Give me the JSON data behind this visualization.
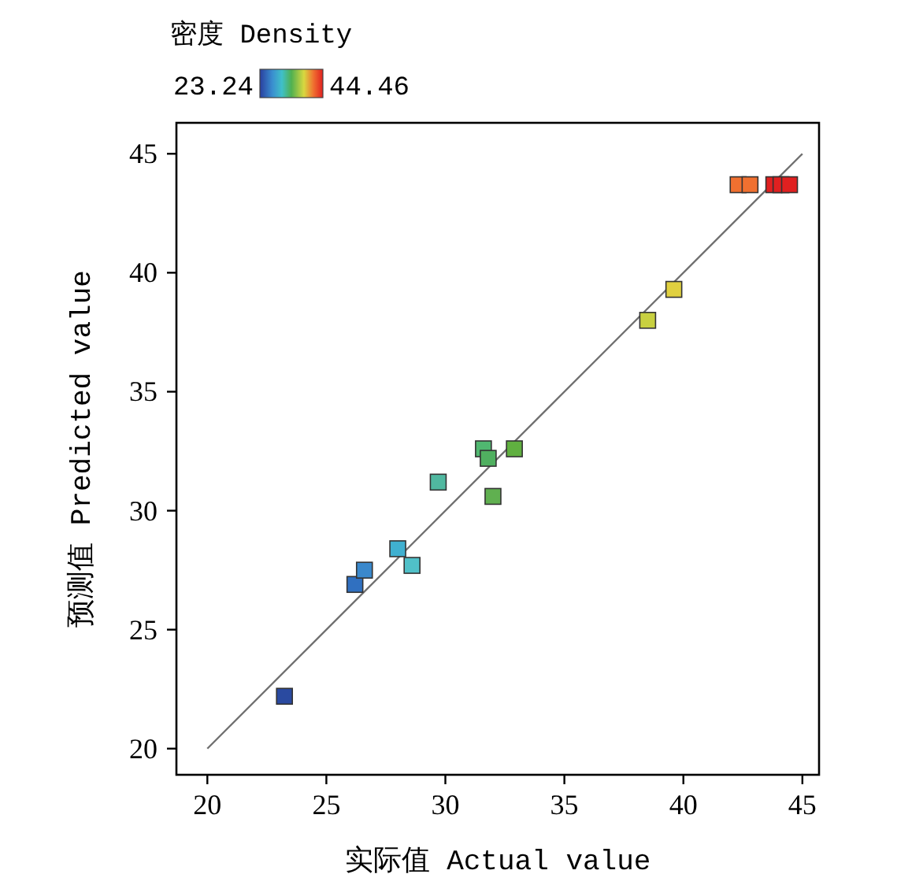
{
  "chart_data": {
    "type": "scatter",
    "xlabel": "实际值 Actual value",
    "ylabel": "预测值 Predicted value",
    "clabel": "密度 Density",
    "annotations": [
      "23.24",
      "44.46"
    ],
    "xlim": [
      18.7,
      45.7
    ],
    "ylim": [
      18.9,
      46.3
    ],
    "xticks": [
      20,
      25,
      30,
      35,
      40,
      45
    ],
    "yticks": [
      20,
      25,
      30,
      35,
      40,
      45
    ],
    "series": [
      {
        "type": "line",
        "color": "#707070",
        "x": [
          20,
          45
        ],
        "values": [
          20,
          45
        ]
      },
      {
        "type": "scatter",
        "marker": "square",
        "x": [
          23.24,
          26.2,
          26.6,
          28.0,
          28.6,
          29.7,
          31.6,
          31.8,
          32.9,
          32.0,
          38.5,
          39.6,
          42.3,
          42.8,
          43.8,
          44.1,
          44.46
        ],
        "values": [
          22.2,
          26.9,
          27.5,
          28.4,
          27.7,
          31.2,
          32.6,
          32.2,
          32.6,
          30.6,
          38.0,
          39.3,
          43.7,
          43.7,
          43.7,
          43.7,
          43.7
        ],
        "colors": [
          "#2a4aa0",
          "#3070c0",
          "#3a88cc",
          "#40b0d0",
          "#50c0c8",
          "#50b8a0",
          "#50b870",
          "#50b060",
          "#60b040",
          "#60b050",
          "#c8d040",
          "#e0d040",
          "#f07030",
          "#f07030",
          "#e02020",
          "#e02020",
          "#e02020"
        ]
      }
    ]
  }
}
